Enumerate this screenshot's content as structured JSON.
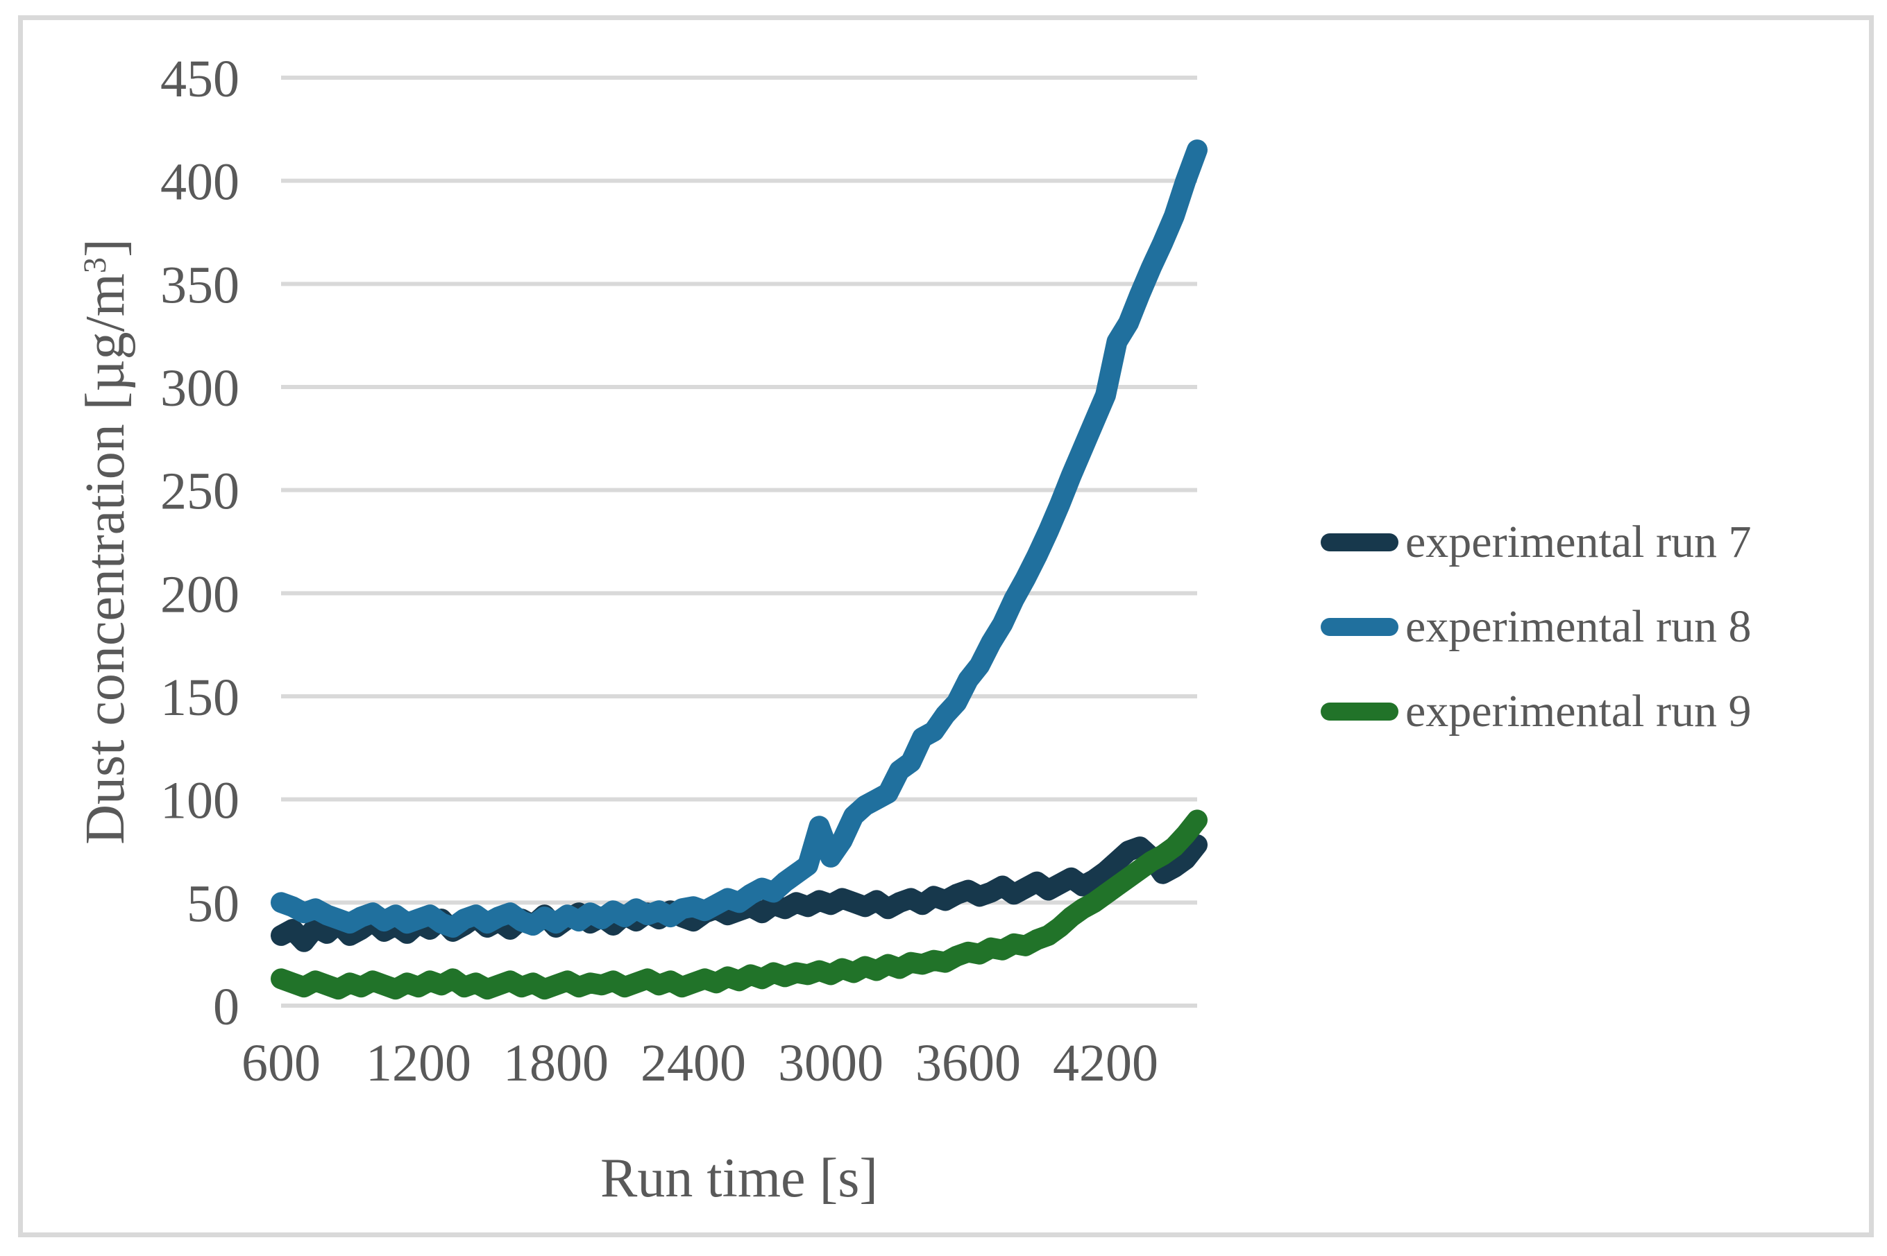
{
  "colors": {
    "text": "#595959",
    "gridline": "#D9D9D9",
    "frame": "#D9D9D9",
    "background": "#FFFFFF"
  },
  "chart_data": {
    "type": "line",
    "title": "",
    "xlabel": "Run time [s]",
    "ylabel": "Dust concentration [µg/m³]",
    "ylabel_parts": {
      "main": "Dust concentration [µg/m",
      "sup": "3",
      "close": "]"
    },
    "xlim": [
      600,
      4600
    ],
    "ylim": [
      0,
      450
    ],
    "xticks": [
      600,
      1200,
      1800,
      2400,
      3000,
      3600,
      4200
    ],
    "yticks": [
      0,
      50,
      100,
      150,
      200,
      250,
      300,
      350,
      400,
      450
    ],
    "grid": "horizontal",
    "legend_position": "right",
    "x": [
      600,
      650,
      700,
      750,
      800,
      850,
      900,
      950,
      1000,
      1050,
      1100,
      1150,
      1200,
      1250,
      1300,
      1350,
      1400,
      1450,
      1500,
      1550,
      1600,
      1650,
      1700,
      1750,
      1800,
      1850,
      1900,
      1950,
      2000,
      2050,
      2100,
      2150,
      2200,
      2250,
      2300,
      2350,
      2400,
      2450,
      2500,
      2550,
      2600,
      2650,
      2700,
      2750,
      2800,
      2850,
      2900,
      2950,
      3000,
      3050,
      3100,
      3150,
      3200,
      3250,
      3300,
      3350,
      3400,
      3450,
      3500,
      3550,
      3600,
      3650,
      3700,
      3750,
      3800,
      3850,
      3900,
      3950,
      4000,
      4050,
      4100,
      4150,
      4200,
      4250,
      4300,
      4350,
      4400,
      4450,
      4500,
      4550,
      4600
    ],
    "series": [
      {
        "name": "experimental run 7",
        "color": "#17384C",
        "values": [
          34,
          37,
          31,
          38,
          35,
          40,
          34,
          37,
          41,
          36,
          39,
          35,
          40,
          37,
          42,
          36,
          39,
          43,
          38,
          41,
          37,
          42,
          39,
          44,
          38,
          42,
          45,
          40,
          43,
          39,
          44,
          41,
          45,
          42,
          46,
          43,
          41,
          45,
          47,
          44,
          46,
          48,
          45,
          49,
          47,
          50,
          48,
          51,
          49,
          52,
          50,
          48,
          51,
          47,
          50,
          52,
          49,
          53,
          51,
          54,
          56,
          53,
          55,
          58,
          54,
          57,
          60,
          56,
          59,
          62,
          58,
          61,
          65,
          70,
          75,
          77,
          72,
          64,
          67,
          71,
          78
        ]
      },
      {
        "name": "experimental run 8",
        "color": "#20709E",
        "values": [
          50,
          48,
          45,
          47,
          44,
          42,
          40,
          43,
          45,
          41,
          44,
          40,
          42,
          44,
          40,
          38,
          42,
          44,
          40,
          43,
          45,
          41,
          39,
          43,
          40,
          44,
          41,
          45,
          42,
          46,
          43,
          47,
          44,
          46,
          43,
          47,
          48,
          46,
          49,
          52,
          50,
          54,
          57,
          55,
          60,
          64,
          68,
          87,
          72,
          80,
          92,
          97,
          100,
          103,
          114,
          118,
          130,
          133,
          141,
          147,
          158,
          165,
          176,
          185,
          197,
          207,
          218,
          230,
          243,
          257,
          270,
          283,
          296,
          322,
          331,
          345,
          358,
          370,
          383,
          400,
          415
        ]
      },
      {
        "name": "experimental run 9",
        "color": "#217329",
        "values": [
          13,
          11,
          9,
          12,
          10,
          8,
          11,
          9,
          12,
          10,
          8,
          11,
          9,
          12,
          10,
          13,
          9,
          11,
          8,
          10,
          12,
          9,
          11,
          8,
          10,
          12,
          9,
          11,
          10,
          12,
          9,
          11,
          13,
          10,
          12,
          9,
          11,
          13,
          11,
          14,
          12,
          15,
          13,
          16,
          14,
          16,
          15,
          17,
          15,
          18,
          16,
          19,
          17,
          20,
          18,
          21,
          20,
          22,
          21,
          24,
          26,
          25,
          28,
          27,
          30,
          29,
          32,
          34,
          38,
          43,
          47,
          50,
          54,
          58,
          62,
          66,
          70,
          73,
          77,
          83,
          90
        ]
      }
    ]
  }
}
